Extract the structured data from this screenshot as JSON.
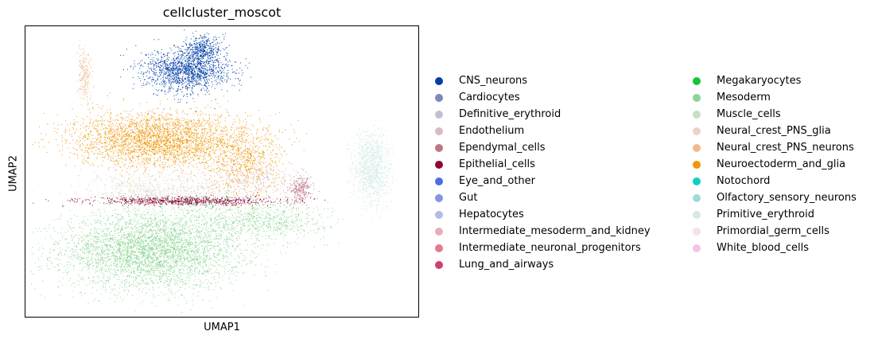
{
  "chart_data": {
    "type": "scatter",
    "title": "cellcluster_moscot",
    "xlabel": "UMAP1",
    "ylabel": "UMAP2",
    "xlim": [
      0,
      100
    ],
    "ylim": [
      0,
      100
    ],
    "grid": false,
    "ticks_shown": false,
    "legend_placement": "right",
    "legend_columns": 2,
    "categories": [
      {
        "name": "CNS_neurons",
        "color": "#023fa5"
      },
      {
        "name": "Cardiocytes",
        "color": "#7d87b9"
      },
      {
        "name": "Definitive_erythroid",
        "color": "#bec1d4"
      },
      {
        "name": "Endothelium",
        "color": "#d6bcc0"
      },
      {
        "name": "Ependymal_cells",
        "color": "#bb7784"
      },
      {
        "name": "Epithelial_cells",
        "color": "#8e063b"
      },
      {
        "name": "Eye_and_other",
        "color": "#4a6fe3"
      },
      {
        "name": "Gut",
        "color": "#8595e1"
      },
      {
        "name": "Hepatocytes",
        "color": "#b5bbe3"
      },
      {
        "name": "Intermediate_mesoderm_and_kidney",
        "color": "#e6afb9"
      },
      {
        "name": "Intermediate_neuronal_progenitors",
        "color": "#e07b91"
      },
      {
        "name": "Lung_and_airways",
        "color": "#d33f6a"
      },
      {
        "name": "Megakaryocytes",
        "color": "#11c638"
      },
      {
        "name": "Mesoderm",
        "color": "#8dd593"
      },
      {
        "name": "Muscle_cells",
        "color": "#c6dec7"
      },
      {
        "name": "Neural_crest_PNS_glia",
        "color": "#ead3c6"
      },
      {
        "name": "Neural_crest_PNS_neurons",
        "color": "#f0b98d"
      },
      {
        "name": "Neuroectoderm_and_glia",
        "color": "#ef9708"
      },
      {
        "name": "Notochord",
        "color": "#0fcfc0"
      },
      {
        "name": "Olfactory_sensory_neurons",
        "color": "#9cded6"
      },
      {
        "name": "Primitive_erythroid",
        "color": "#d5eae7"
      },
      {
        "name": "Primordial_germ_cells",
        "color": "#f3e1eb"
      },
      {
        "name": "White_blood_cells",
        "color": "#f6c4e1"
      }
    ],
    "clusters": [
      {
        "category": "Mesoderm",
        "center": [
          32,
          23
        ],
        "spread": [
          19,
          11
        ],
        "count": 4200
      },
      {
        "category": "Mesoderm",
        "center": [
          60,
          33
        ],
        "spread": [
          14,
          5
        ],
        "count": 700
      },
      {
        "category": "Neuroectoderm_and_glia",
        "center": [
          34,
          61
        ],
        "spread": [
          18,
          8
        ],
        "count": 3000
      },
      {
        "category": "Neuroectoderm_and_glia",
        "center": [
          56,
          53
        ],
        "spread": [
          8,
          10
        ],
        "count": 700
      },
      {
        "category": "CNS_neurons",
        "center": [
          41,
          85
        ],
        "spread": [
          9,
          6
        ],
        "count": 1500
      },
      {
        "category": "CNS_neurons",
        "center": [
          45,
          92
        ],
        "spread": [
          4,
          4
        ],
        "count": 400
      },
      {
        "category": "Epithelial_cells",
        "center": [
          40,
          40
        ],
        "spread": [
          20,
          1.2
        ],
        "count": 900
      },
      {
        "category": "Primitive_erythroid",
        "center": [
          88,
          51
        ],
        "spread": [
          4,
          11
        ],
        "count": 1300
      },
      {
        "category": "Ependymal_cells",
        "center": [
          70,
          44
        ],
        "spread": [
          2.3,
          4
        ],
        "count": 250
      },
      {
        "category": "Endothelium",
        "center": [
          60,
          47
        ],
        "spread": [
          9,
          5
        ],
        "count": 250
      },
      {
        "category": "Neural_crest_PNS_neurons",
        "center": [
          15,
          83
        ],
        "spread": [
          1.5,
          8
        ],
        "count": 220
      },
      {
        "category": "Neural_crest_PNS_glia",
        "center": [
          32,
          43
        ],
        "spread": [
          9,
          4
        ],
        "count": 300
      },
      {
        "category": "Muscle_cells",
        "center": [
          30,
          44
        ],
        "spread": [
          15,
          6
        ],
        "count": 300
      },
      {
        "category": "Intermediate_mesoderm_and_kidney",
        "center": [
          45,
          45
        ],
        "spread": [
          12,
          5
        ],
        "count": 150
      },
      {
        "category": "Megakaryocytes",
        "center": [
          46,
          39
        ],
        "spread": [
          18,
          3
        ],
        "count": 90
      },
      {
        "category": "Primordial_germ_cells",
        "center": [
          42,
          48
        ],
        "spread": [
          14,
          4
        ],
        "count": 120
      }
    ]
  }
}
